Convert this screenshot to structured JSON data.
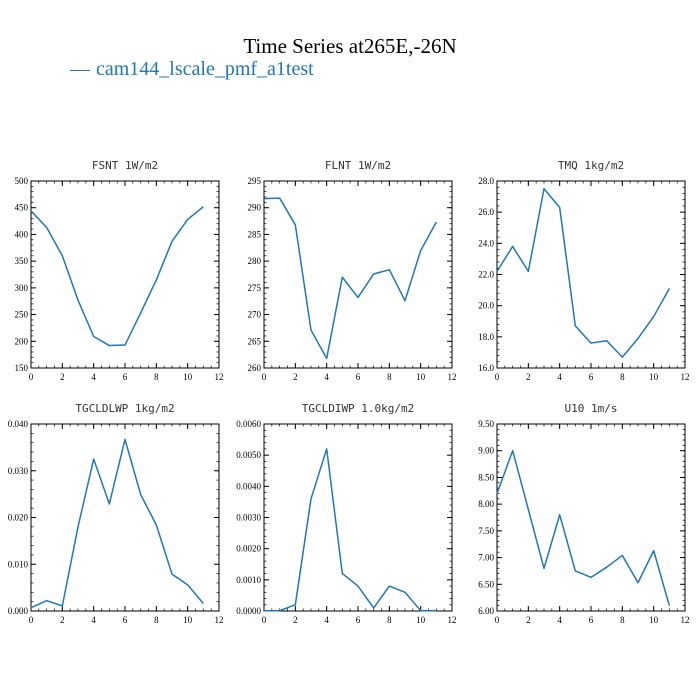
{
  "title": "Time Series at265E,-26N",
  "legend": {
    "dash": "—",
    "label": "cam144_lscale_pmf_a1test",
    "color": "#1f77b4"
  },
  "chart_data": [
    {
      "type": "line",
      "title": "FSNT   1W/m2",
      "x": [
        0,
        1,
        2,
        3,
        4,
        5,
        6,
        7,
        8,
        9,
        10,
        11
      ],
      "series": [
        {
          "values": [
            444,
            413,
            360,
            277,
            209,
            192,
            193,
            253,
            315,
            387,
            428,
            452
          ]
        }
      ],
      "xlim": [
        0,
        12
      ],
      "xticks": [
        0,
        2,
        4,
        6,
        8,
        10,
        12
      ],
      "xtick_labels": [
        "0",
        "2",
        "4",
        "6",
        "8",
        "10",
        "12"
      ],
      "ylim": [
        150,
        500
      ],
      "yticks": [
        150,
        200,
        250,
        300,
        350,
        400,
        450,
        500
      ],
      "ytick_labels": [
        "150",
        "200",
        "250",
        "300",
        "350",
        "400",
        "450",
        "500"
      ]
    },
    {
      "type": "line",
      "title": "FLNT   1W/m2",
      "x": [
        0,
        1,
        2,
        3,
        4,
        5,
        6,
        7,
        8,
        9,
        10,
        11
      ],
      "series": [
        {
          "values": [
            291.7,
            291.8,
            286.8,
            267.1,
            261.8,
            277.0,
            273.2,
            277.6,
            278.4,
            272.6,
            282.0,
            287.3
          ]
        }
      ],
      "xlim": [
        0,
        12
      ],
      "xticks": [
        0,
        2,
        4,
        6,
        8,
        10,
        12
      ],
      "xtick_labels": [
        "0",
        "2",
        "4",
        "6",
        "8",
        "10",
        "12"
      ],
      "ylim": [
        260,
        295
      ],
      "yticks": [
        260,
        265,
        270,
        275,
        280,
        285,
        290,
        295
      ],
      "ytick_labels": [
        "260",
        "265",
        "270",
        "275",
        "280",
        "285",
        "290",
        "295"
      ]
    },
    {
      "type": "line",
      "title": "TMQ   1kg/m2",
      "x": [
        0,
        1,
        2,
        3,
        4,
        5,
        6,
        7,
        8,
        9,
        10,
        11
      ],
      "series": [
        {
          "values": [
            22.2,
            23.8,
            22.2,
            27.5,
            26.3,
            18.7,
            17.6,
            17.75,
            16.7,
            17.9,
            19.3,
            21.1
          ]
        }
      ],
      "xlim": [
        0,
        12
      ],
      "xticks": [
        0,
        2,
        4,
        6,
        8,
        10,
        12
      ],
      "xtick_labels": [
        "0",
        "2",
        "4",
        "6",
        "8",
        "10",
        "12"
      ],
      "ylim": [
        16,
        28
      ],
      "yticks": [
        16,
        18,
        20,
        22,
        24,
        26,
        28
      ],
      "ytick_labels": [
        "16.0",
        "18.0",
        "20.0",
        "22.0",
        "24.0",
        "26.0",
        "28.0"
      ]
    },
    {
      "type": "line",
      "title": "TGCLDLWP   1kg/m2",
      "x": [
        0,
        1,
        2,
        3,
        4,
        5,
        6,
        7,
        8,
        9,
        10,
        11
      ],
      "series": [
        {
          "values": [
            0.0007,
            0.0022,
            0.0011,
            0.018,
            0.0325,
            0.0229,
            0.0367,
            0.0249,
            0.0184,
            0.0079,
            0.0056,
            0.0016
          ]
        }
      ],
      "xlim": [
        0,
        12
      ],
      "xticks": [
        0,
        2,
        4,
        6,
        8,
        10,
        12
      ],
      "xtick_labels": [
        "0",
        "2",
        "4",
        "6",
        "8",
        "10",
        "12"
      ],
      "ylim": [
        0,
        0.04
      ],
      "yticks": [
        0,
        0.01,
        0.02,
        0.03,
        0.04
      ],
      "ytick_labels": [
        "0.000",
        "0.010",
        "0.020",
        "0.030",
        "0.040"
      ]
    },
    {
      "type": "line",
      "title": "TGCLDIWP   1.0kg/m2",
      "x": [
        0,
        1,
        2,
        3,
        4,
        5,
        6,
        7,
        8,
        9,
        10,
        11
      ],
      "series": [
        {
          "values": [
            1e-05,
            1e-05,
            0.0002,
            0.0036,
            0.0052,
            0.0012,
            0.0008,
            0.0001,
            0.0008,
            0.0006,
            1e-05,
            1e-05
          ]
        }
      ],
      "xlim": [
        0,
        12
      ],
      "xticks": [
        0,
        2,
        4,
        6,
        8,
        10,
        12
      ],
      "xtick_labels": [
        "0",
        "2",
        "4",
        "6",
        "8",
        "10",
        "12"
      ],
      "ylim": [
        0,
        0.006
      ],
      "yticks": [
        0,
        0.001,
        0.002,
        0.003,
        0.004,
        0.005,
        0.006
      ],
      "ytick_labels": [
        "0.0000",
        "0.0010",
        "0.0020",
        "0.0030",
        "0.0040",
        "0.0050",
        "0.0060"
      ]
    },
    {
      "type": "line",
      "title": "U10   1m/s",
      "x": [
        0,
        1,
        2,
        3,
        4,
        5,
        6,
        7,
        8,
        9,
        10,
        11
      ],
      "series": [
        {
          "values": [
            8.2,
            9.0,
            7.9,
            6.8,
            7.8,
            6.75,
            6.63,
            6.82,
            7.04,
            6.53,
            7.13,
            6.1
          ]
        }
      ],
      "xlim": [
        0,
        12
      ],
      "xticks": [
        0,
        2,
        4,
        6,
        8,
        10,
        12
      ],
      "xtick_labels": [
        "0",
        "2",
        "4",
        "6",
        "8",
        "10",
        "12"
      ],
      "ylim": [
        6,
        9.5
      ],
      "yticks": [
        6,
        6.5,
        7,
        7.5,
        8,
        8.5,
        9,
        9.5
      ],
      "ytick_labels": [
        "6.00",
        "6.50",
        "7.00",
        "7.50",
        "8.00",
        "8.50",
        "9.00",
        "9.50"
      ]
    }
  ]
}
